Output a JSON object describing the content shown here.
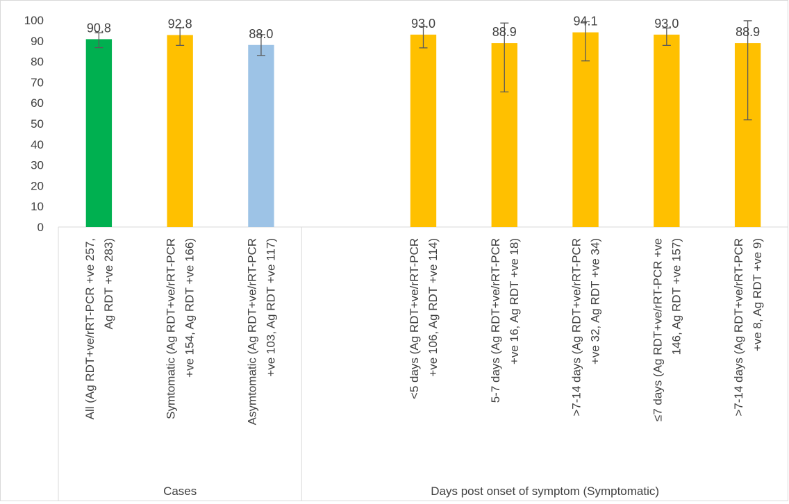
{
  "chart_data": {
    "type": "bar",
    "title": "",
    "xlabel": "",
    "ylabel": "",
    "ylim": [
      0,
      100
    ],
    "y_ticks": [
      0,
      10,
      20,
      30,
      40,
      50,
      60,
      70,
      80,
      90,
      100
    ],
    "grid": false,
    "legend": "none",
    "categories": [
      {
        "label_lines": [
          "All  (Ag RDT+ve/rRT-PCR +ve 257,",
          "Ag RDT +ve 283)"
        ]
      },
      {
        "label_lines": [
          "Symtomatic (Ag RDT+ve/rRT-PCR",
          "+ve 154, Ag RDT +ve 166)"
        ]
      },
      {
        "label_lines": [
          "Asymtomatic (Ag RDT+ve/rRT-PCR",
          "+ve 103, Ag RDT +ve 117)"
        ]
      },
      {
        "label_lines": [
          ""
        ]
      },
      {
        "label_lines": [
          "<5 days (Ag RDT+ve/rRT-PCR",
          "+ve 106, Ag RDT +ve 114)"
        ]
      },
      {
        "label_lines": [
          "5-7 days (Ag RDT+ve/rRT-PCR",
          "+ve 16, Ag RDT +ve 18)"
        ]
      },
      {
        "label_lines": [
          ">7-14 days (Ag RDT+ve/rRT-PCR",
          "+ve 32, Ag RDT +ve 34)"
        ]
      },
      {
        "label_lines": [
          "≤7 days (Ag RDT+ve/rRT-PCR +ve",
          "146, Ag RDT +ve 157)"
        ]
      },
      {
        "label_lines": [
          ">7-14 days (Ag RDT+ve/rRT-PCR",
          "+ve 8, Ag RDT +ve 9)"
        ]
      }
    ],
    "values": [
      90.8,
      92.8,
      88.0,
      null,
      93.0,
      88.9,
      94.1,
      93.0,
      88.9
    ],
    "value_labels": [
      "90.8",
      "92.8",
      "88.0",
      "",
      "93.0",
      "88.9",
      "94.1",
      "93.0",
      "88.9"
    ],
    "error_low": [
      86.7,
      87.8,
      82.9,
      null,
      86.6,
      65.3,
      80.3,
      87.8,
      51.8
    ],
    "error_high": [
      93.9,
      96.3,
      93.0,
      null,
      96.9,
      98.6,
      99.3,
      96.2,
      99.7
    ],
    "colors": [
      "#00b050",
      "#ffc000",
      "#9dc3e6",
      null,
      "#ffc000",
      "#ffc000",
      "#ffc000",
      "#ffc000",
      "#ffc000"
    ],
    "groups": [
      {
        "label": "Cases",
        "from": 0,
        "to": 2
      },
      {
        "label": "Days post onset of symptom (Symptomatic)",
        "from": 3,
        "to": 8
      }
    ]
  }
}
